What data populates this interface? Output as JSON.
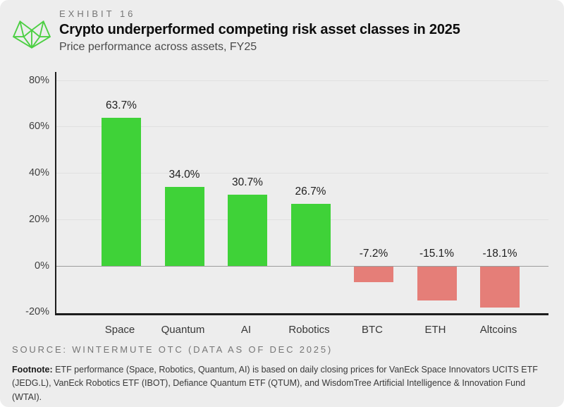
{
  "header": {
    "exhibit_label": "EXHIBIT 16",
    "title": "Crypto underperformed competing risk asset classes in 2025",
    "subtitle": "Price performance across assets, FY25"
  },
  "chart_data": {
    "type": "bar",
    "title": "Price performance across assets, FY25",
    "categories": [
      "Space",
      "Quantum",
      "AI",
      "Robotics",
      "BTC",
      "ETH",
      "Altcoins"
    ],
    "values": [
      63.7,
      34.0,
      30.7,
      26.7,
      -7.2,
      -15.1,
      -18.1
    ],
    "value_labels": [
      "63.7%",
      "34.0%",
      "30.7%",
      "26.7%",
      "-7.2%",
      "-15.1%",
      "-18.1%"
    ],
    "xlabel": "",
    "ylabel": "",
    "ylim": [
      -20.5,
      83.5
    ],
    "yticks": [
      80,
      60,
      40,
      20,
      0,
      -20
    ],
    "ytick_labels": [
      "80%",
      "60%",
      "40%",
      "20%",
      "0%",
      "-20%"
    ],
    "grid": "horizontal",
    "legend": "none",
    "positive_color": "#3fd238",
    "negative_color": "#e57e78"
  },
  "footer": {
    "source": "SOURCE: WINTERMUTE OTC (DATA AS OF DEC 2025)",
    "footnote_label": "Footnote:",
    "footnote_text": " ETF performance (Space, Robotics, Quantum, AI) is based on daily closing prices for VanEck Space Innovators UCITS ETF (JEDG.L), VanEck Robotics ETF (IBOT), Defiance Quantum ETF (QTUM), and WisdomTree Artificial Intelligence & Innovation Fund (WTAI)."
  },
  "colors": {
    "card_background": "#ededed",
    "positive_bar": "#3fd238",
    "negative_bar": "#e57e78",
    "logo_green": "#4ccf43",
    "axis": "#1d1d1d",
    "gridline": "#e0e0e0",
    "zero_line": "#9c9c9c"
  }
}
